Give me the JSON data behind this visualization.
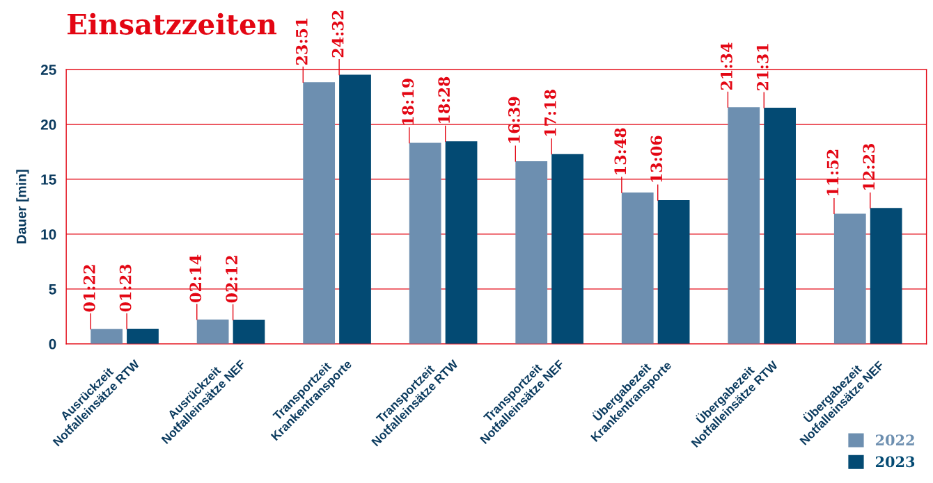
{
  "chart_data": {
    "type": "bar",
    "title": "Einsatzzeiten",
    "ylabel": "Dauer [min]",
    "categories": [
      "Ausrückzeit\nNotfalleinsätze RTW",
      "Ausrückzeit\nNotfalleinsätze NEF",
      "Transportzeit\nKrankentransporte",
      "Transportzeit\nNotfalleinsätze RTW",
      "Transportzeit\nNotfalleinsätze NEF",
      "Übergabezeit\nKrankentransporte",
      "Übergabezeit\nNotfalleinsätze RTW",
      "Übergabezeit\nNotfalleinsätze NEF"
    ],
    "series": [
      {
        "name": "2022",
        "color": "#6d8fb0",
        "values": [
          1.37,
          2.23,
          23.85,
          18.32,
          16.65,
          13.8,
          21.57,
          11.87
        ],
        "value_labels": [
          "01:22",
          "02:14",
          "23:51",
          "18:19",
          "16:39",
          "13:48",
          "21:34",
          "11:52"
        ]
      },
      {
        "name": "2023",
        "color": "#034a73",
        "values": [
          1.38,
          2.2,
          24.53,
          18.47,
          17.3,
          13.1,
          21.52,
          12.38
        ],
        "value_labels": [
          "01:23",
          "02:12",
          "24:32",
          "18:28",
          "17:18",
          "13:06",
          "21:31",
          "12:23"
        ]
      }
    ],
    "ylim": [
      0,
      25
    ],
    "yticks": [
      0,
      5,
      10,
      15,
      20,
      25
    ],
    "grid": "y",
    "legend": "bottom right"
  }
}
